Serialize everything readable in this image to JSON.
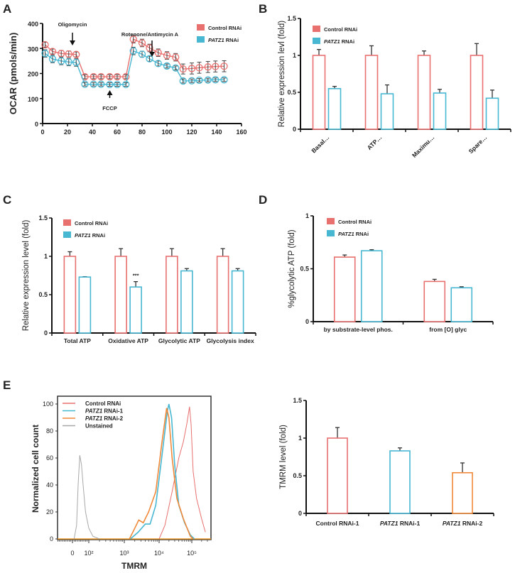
{
  "panel_labels": [
    "A",
    "B",
    "C",
    "D",
    "E"
  ],
  "colors": {
    "control": "#e8706f",
    "patz1": "#47b7d2",
    "patz1_2": "#f08838",
    "unstained": "#a8a8a8",
    "axis": "#111111"
  },
  "chart_data": [
    {
      "panel": "A",
      "type": "line",
      "xlabel": "",
      "ylabel": "OCAR (pmols/min)",
      "xlim": [
        0,
        160
      ],
      "ylim": [
        0,
        400
      ],
      "xticks": [
        0,
        20,
        40,
        60,
        80,
        100,
        120,
        140,
        160
      ],
      "yticks": [
        0,
        100,
        200,
        300,
        400
      ],
      "legend": "top-right",
      "x": [
        2,
        8,
        15,
        21,
        27,
        34,
        41,
        47,
        54,
        60,
        67,
        73,
        80,
        86,
        93,
        100,
        107,
        113,
        120,
        126,
        133,
        139,
        146
      ],
      "series": [
        {
          "name": "Control RNAi",
          "color": "#e8706f",
          "values": [
            315,
            288,
            280,
            278,
            276,
            187,
            187,
            187,
            187,
            187,
            187,
            337,
            322,
            302,
            283,
            272,
            265,
            218,
            220,
            223,
            226,
            228,
            229
          ],
          "errors": [
            10,
            10,
            12,
            12,
            10,
            8,
            8,
            8,
            8,
            8,
            8,
            15,
            15,
            15,
            15,
            15,
            15,
            20,
            22,
            22,
            22,
            22,
            22
          ]
        },
        {
          "name": "PATZ1 RNAi",
          "color": "#47b7d2",
          "values": [
            280,
            258,
            250,
            246,
            244,
            157,
            157,
            157,
            156,
            156,
            156,
            290,
            277,
            259,
            240,
            230,
            222,
            170,
            171,
            173,
            174,
            175,
            175
          ],
          "errors": [
            15,
            15,
            15,
            15,
            15,
            7,
            7,
            7,
            7,
            7,
            7,
            15,
            12,
            10,
            10,
            8,
            8,
            8,
            7,
            7,
            7,
            7,
            7
          ]
        }
      ],
      "annotations": [
        {
          "text": "Oligomycin",
          "x": 24,
          "direction": "down"
        },
        {
          "text": "FCCP",
          "x": 54,
          "direction": "up"
        },
        {
          "text": "Rotenone/Antimycin A",
          "x": 88,
          "direction": "down"
        }
      ]
    },
    {
      "panel": "B",
      "type": "bar",
      "ylabel": "Relative expression levl (fold)",
      "ylim": [
        0,
        1.5
      ],
      "yticks": [
        0,
        0.5,
        1,
        1.5
      ],
      "ytick_labels": [
        "0",
        "0.5",
        "1",
        "1.5"
      ],
      "categories": [
        "Basal…",
        "ATP…",
        "Maximu…",
        "Spare…"
      ],
      "legend": "top-left",
      "series": [
        {
          "name": "Control RNAi",
          "color": "#e8706f",
          "values": [
            1,
            1,
            1,
            1
          ],
          "errors": [
            0.08,
            0.13,
            0.06,
            0.16
          ]
        },
        {
          "name": "PATZ1 RNAi",
          "color": "#47b7d2",
          "values": [
            0.55,
            0.48,
            0.49,
            0.42
          ],
          "errors": [
            0.03,
            0.12,
            0.05,
            0.11
          ]
        }
      ]
    },
    {
      "panel": "C",
      "type": "bar",
      "ylabel": "Relative expression level (fold)",
      "ylim": [
        0,
        1.5
      ],
      "yticks": [
        0,
        0.5,
        1,
        1.5
      ],
      "ytick_labels": [
        "0",
        "0.5",
        "1",
        "1.5"
      ],
      "categories": [
        "Total ATP",
        "Oxidative  ATP",
        "Glycolytic ATP",
        "Glycolysis index"
      ],
      "legend": "top-left",
      "series": [
        {
          "name": "Control RNAi",
          "color": "#e8706f",
          "values": [
            1,
            1,
            1,
            1
          ],
          "errors": [
            0.06,
            0.1,
            0.1,
            0.1
          ]
        },
        {
          "name": "PATZ1 RNAi",
          "color": "#47b7d2",
          "values": [
            0.73,
            0.6,
            0.81,
            0.81
          ],
          "errors": [
            0.005,
            0.07,
            0.03,
            0.03
          ],
          "significance": [
            "",
            "***",
            "",
            ""
          ]
        }
      ]
    },
    {
      "panel": "D",
      "type": "bar",
      "ylabel": "%glycolytic ATP (fold)",
      "ylim": [
        0,
        1
      ],
      "yticks": [
        0,
        0.5,
        1
      ],
      "ytick_labels": [
        "0",
        "0.5",
        "1"
      ],
      "categories": [
        "by substrate-level phos.",
        "from [O] glyc"
      ],
      "legend": "top-left",
      "series": [
        {
          "name": "Control RNAi",
          "color": "#e8706f",
          "values": [
            0.61,
            0.38
          ],
          "errors": [
            0.02,
            0.02
          ]
        },
        {
          "name": "PATZ1 RNAi",
          "color": "#47b7d2",
          "values": [
            0.67,
            0.32
          ],
          "errors": [
            0.01,
            0.01
          ]
        }
      ]
    },
    {
      "panel": "E",
      "type": "line",
      "subtype": "histogram",
      "xlabel": "TMRM",
      "ylabel": "Normalized cell count",
      "xscale": "biexponential",
      "ylim": [
        0,
        100
      ],
      "yticks": [
        0,
        20,
        40,
        60,
        80,
        100
      ],
      "xticks": [
        0,
        100,
        1000,
        10000,
        100000
      ],
      "xtick_labels": [
        "0",
        "10²",
        "10³",
        "10⁴",
        "10⁵"
      ],
      "legend": "top-left",
      "series": [
        {
          "name": "Control  RNAi",
          "color": "#e8706f",
          "x": [
            10000,
            15000,
            25000,
            40000,
            55000,
            70000,
            85000,
            95000,
            110000,
            140000,
            200000,
            260000
          ],
          "y": [
            0,
            10,
            35,
            60,
            72,
            85,
            98,
            85,
            50,
            30,
            15,
            5
          ]
        },
        {
          "name": "PATZ1  RNAi-1",
          "color": "#47b7d2",
          "x": [
            1500,
            2500,
            4000,
            5500,
            8000,
            12000,
            18000,
            20000,
            24000,
            30000,
            40000,
            60000,
            90000,
            120000
          ],
          "y": [
            0,
            5,
            11,
            11,
            25,
            60,
            95,
            100,
            90,
            55,
            25,
            12,
            3,
            0
          ]
        },
        {
          "name": "PATZ1 RNAi-2",
          "color": "#f08838",
          "x": [
            1400,
            2000,
            2600,
            3500,
            5000,
            8000,
            12000,
            17000,
            20000,
            25000,
            35000,
            55000,
            90000,
            110000
          ],
          "y": [
            0,
            8,
            14,
            12,
            20,
            35,
            70,
            97,
            90,
            60,
            30,
            15,
            2,
            0
          ]
        },
        {
          "name": "Unstained",
          "color": "#a8a8a8",
          "x": [
            10,
            25,
            35,
            45,
            55,
            65,
            80,
            100,
            130,
            200
          ],
          "y": [
            0,
            10,
            40,
            62,
            55,
            40,
            20,
            8,
            2,
            0
          ]
        }
      ]
    },
    {
      "panel": "E-right",
      "type": "bar",
      "ylabel": "TMRM level (fold)",
      "ylim": [
        0,
        1.5
      ],
      "yticks": [
        0,
        0.5,
        1,
        1.5
      ],
      "ytick_labels": [
        "0",
        "0.5",
        "1",
        "1.5"
      ],
      "categories": [
        "Control RNAi-1",
        "PATZ1 RNAi-1",
        "PATZ1 RNAi-2"
      ],
      "series": [
        {
          "name": "",
          "colors": [
            "#e8706f",
            "#47b7d2",
            "#f08838"
          ],
          "values": [
            1,
            0.83,
            0.54
          ],
          "errors": [
            0.14,
            0.04,
            0.13
          ]
        }
      ]
    }
  ]
}
